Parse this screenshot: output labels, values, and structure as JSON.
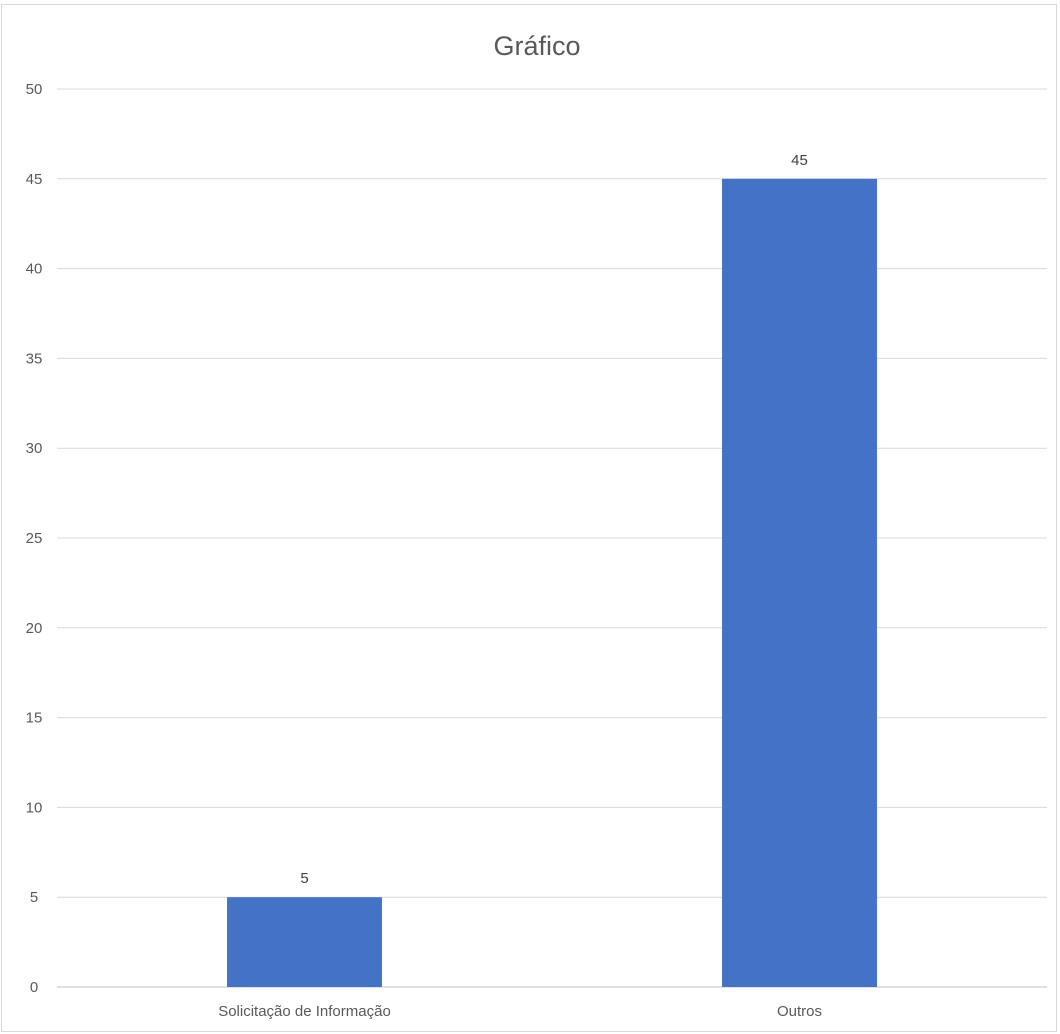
{
  "chart_data": {
    "type": "bar",
    "title": "Gráfico",
    "categories": [
      "Solicitação de Informação",
      "Outros"
    ],
    "values": [
      5,
      45
    ],
    "data_labels": [
      "5",
      "45"
    ],
    "ylim": [
      0,
      50
    ],
    "yticks": [
      0,
      5,
      10,
      15,
      20,
      25,
      30,
      35,
      40,
      45,
      50
    ],
    "grid": true,
    "legend": "none",
    "bar_color": "#4472C4",
    "xlabel": "",
    "ylabel": ""
  }
}
